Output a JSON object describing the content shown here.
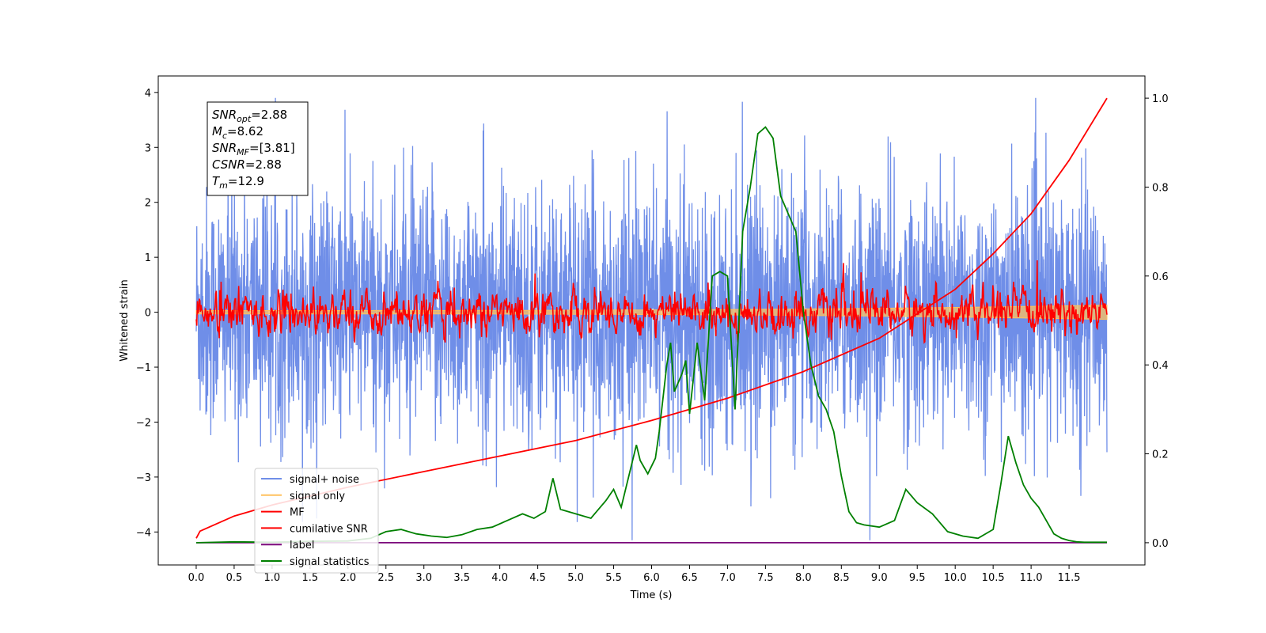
{
  "chart_data": {
    "type": "line",
    "xlabel": "Time (s)",
    "ylabel": "Whitened strain",
    "xlim": [
      -0.5,
      12.5
    ],
    "ylim": [
      -4.6,
      4.3
    ],
    "y2lim": [
      -0.05,
      1.05
    ],
    "x_ticks": [
      0.0,
      0.5,
      1.0,
      1.5,
      2.0,
      2.5,
      3.0,
      3.5,
      4.0,
      4.5,
      5.0,
      5.5,
      6.0,
      6.5,
      7.0,
      7.5,
      8.0,
      8.5,
      9.0,
      9.5,
      10.0,
      10.5,
      11.0,
      11.5
    ],
    "x_tick_labels": [
      "0.0",
      "0.5",
      "1.0",
      "1.5",
      "2.0",
      "2.5",
      "3.0",
      "3.5",
      "4.0",
      "4.5",
      "5.0",
      "5.5",
      "6.0",
      "6.5",
      "7.0",
      "7.5",
      "8.0",
      "8.5",
      "9.0",
      "9.5",
      "10.0",
      "10.5",
      "11.0",
      "11.5"
    ],
    "y_ticks": [
      4,
      3,
      2,
      1,
      0,
      -1,
      -2,
      -3,
      -4
    ],
    "y_tick_labels": [
      "4",
      "3",
      "2",
      "1",
      "0",
      "−1",
      "−2",
      "−3",
      "−4"
    ],
    "y2_ticks": [
      1.0,
      0.8,
      0.6,
      0.4,
      0.2,
      0.0
    ],
    "y2_tick_labels": [
      "1.0",
      "0.8",
      "0.6",
      "0.4",
      "0.2",
      "0.0"
    ],
    "legend_placement": "lower-left",
    "grid": false,
    "info_box": {
      "lines": [
        {
          "symbol": "SNR",
          "sub": "opt",
          "value": "=2.88"
        },
        {
          "symbol": "M",
          "sub": "c",
          "value": "=8.62"
        },
        {
          "symbol": "SNR",
          "sub": "MF",
          "value": "=[3.81]"
        },
        {
          "symbol": "CSNR",
          "sub": "",
          "value": "=2.88"
        },
        {
          "symbol": "T",
          "sub": "m",
          "value": "=12.9"
        }
      ]
    },
    "series": [
      {
        "name": "signal+ noise",
        "axis": "left",
        "color": "#6f8ee8",
        "noise_amplitude": 1.25,
        "x_range": [
          0,
          12
        ]
      },
      {
        "name": "signal only",
        "axis": "left",
        "color": "#ffc15e",
        "band_amplitude_start": 0.03,
        "band_amplitude_end": 0.13,
        "x_range": [
          0,
          12
        ]
      },
      {
        "name": "MF",
        "axis": "left",
        "color": "#ff0000",
        "noise_amplitude": 0.3,
        "x_range": [
          0,
          12
        ]
      },
      {
        "name": "cumilative SNR",
        "axis": "right",
        "color": "#ff0000",
        "x": [
          0.0,
          0.05,
          0.5,
          1.0,
          2.0,
          3.0,
          4.0,
          5.0,
          6.0,
          7.0,
          8.0,
          9.0,
          10.0,
          10.5,
          11.0,
          11.5,
          12.0
        ],
        "y": [
          0.01,
          0.026,
          0.06,
          0.085,
          0.125,
          0.16,
          0.195,
          0.23,
          0.275,
          0.325,
          0.385,
          0.46,
          0.57,
          0.65,
          0.74,
          0.86,
          1.0
        ]
      },
      {
        "name": "label",
        "axis": "right",
        "color": "#7b0a7b",
        "x": [
          0,
          12
        ],
        "y": [
          0.0,
          0.0
        ]
      },
      {
        "name": "signal statistics",
        "axis": "right",
        "color": "#008000",
        "x": [
          0.0,
          0.5,
          1.0,
          1.5,
          2.0,
          2.3,
          2.5,
          2.7,
          2.9,
          3.1,
          3.3,
          3.5,
          3.7,
          3.9,
          4.1,
          4.3,
          4.45,
          4.6,
          4.7,
          4.8,
          5.0,
          5.2,
          5.4,
          5.5,
          5.6,
          5.8,
          5.85,
          5.95,
          6.05,
          6.1,
          6.2,
          6.25,
          6.3,
          6.4,
          6.45,
          6.5,
          6.6,
          6.7,
          6.8,
          6.9,
          7.0,
          7.1,
          7.2,
          7.3,
          7.4,
          7.5,
          7.6,
          7.7,
          7.8,
          7.9,
          8.0,
          8.1,
          8.2,
          8.3,
          8.4,
          8.5,
          8.6,
          8.7,
          8.8,
          9.0,
          9.2,
          9.35,
          9.5,
          9.7,
          9.9,
          10.1,
          10.3,
          10.5,
          10.6,
          10.7,
          10.8,
          10.9,
          11.0,
          11.1,
          11.2,
          11.3,
          11.4,
          11.5,
          11.6,
          11.7,
          11.8,
          11.9,
          12.0
        ],
        "y": [
          0.0,
          0.002,
          0.001,
          0.003,
          0.004,
          0.01,
          0.025,
          0.03,
          0.02,
          0.015,
          0.012,
          0.018,
          0.03,
          0.035,
          0.05,
          0.065,
          0.055,
          0.07,
          0.145,
          0.075,
          0.065,
          0.055,
          0.095,
          0.12,
          0.08,
          0.22,
          0.185,
          0.155,
          0.19,
          0.25,
          0.4,
          0.45,
          0.34,
          0.38,
          0.41,
          0.29,
          0.45,
          0.32,
          0.6,
          0.61,
          0.6,
          0.3,
          0.7,
          0.8,
          0.92,
          0.935,
          0.91,
          0.78,
          0.74,
          0.7,
          0.52,
          0.4,
          0.33,
          0.3,
          0.25,
          0.15,
          0.07,
          0.045,
          0.04,
          0.035,
          0.05,
          0.12,
          0.09,
          0.065,
          0.025,
          0.015,
          0.01,
          0.03,
          0.13,
          0.24,
          0.18,
          0.13,
          0.1,
          0.08,
          0.05,
          0.02,
          0.01,
          0.005,
          0.002,
          0.001,
          0.001,
          0.001,
          0.001
        ]
      }
    ]
  }
}
